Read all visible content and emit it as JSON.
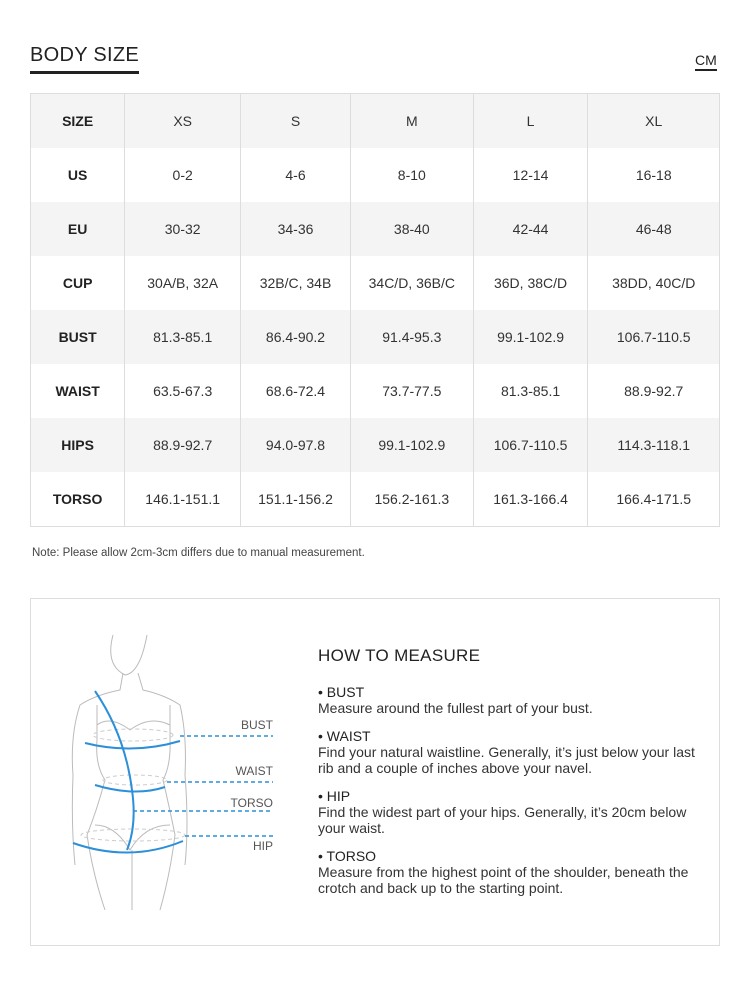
{
  "header": {
    "title": "BODY SIZE",
    "unit": "CM"
  },
  "table": {
    "columns": [
      "SIZE",
      "XS",
      "S",
      "M",
      "L",
      "XL"
    ],
    "rows": [
      {
        "label": "US",
        "values": [
          "0-2",
          "4-6",
          "8-10",
          "12-14",
          "16-18"
        ]
      },
      {
        "label": "EU",
        "values": [
          "30-32",
          "34-36",
          "38-40",
          "42-44",
          "46-48"
        ]
      },
      {
        "label": "CUP",
        "values": [
          "30A/B, 32A",
          "32B/C, 34B",
          "34C/D, 36B/C",
          "36D, 38C/D",
          "38DD, 40C/D"
        ]
      },
      {
        "label": "BUST",
        "values": [
          "81.3-85.1",
          "86.4-90.2",
          "91.4-95.3",
          "99.1-102.9",
          "106.7-110.5"
        ]
      },
      {
        "label": "WAIST",
        "values": [
          "63.5-67.3",
          "68.6-72.4",
          "73.7-77.5",
          "81.3-85.1",
          "88.9-92.7"
        ]
      },
      {
        "label": "HIPS",
        "values": [
          "88.9-92.7",
          "94.0-97.8",
          "99.1-102.9",
          "106.7-110.5",
          "114.3-118.1"
        ]
      },
      {
        "label": "TORSO",
        "values": [
          "146.1-151.1",
          "151.1-156.2",
          "156.2-161.3",
          "161.3-166.4",
          "166.4-171.5"
        ]
      }
    ]
  },
  "note": "Note: Please allow 2cm-3cm differs due to manual measurement.",
  "figure": {
    "labels": [
      "BUST",
      "WAIST",
      "TORSO",
      "HIP"
    ],
    "accent": "#2b8fd9"
  },
  "how": {
    "title": "HOW TO MEASURE",
    "items": [
      {
        "name": "• BUST",
        "text": "Measure around the fullest part of your bust."
      },
      {
        "name": "• WAIST",
        "text": "Find your natural waistline. Generally, it’s just below your last rib and a couple of inches above your navel."
      },
      {
        "name": "• HIP",
        "text": "Find the widest part of your hips. Generally, it’s 20cm below your waist."
      },
      {
        "name": "• TORSO",
        "text": "Measure from the highest point of the shoulder, beneath the crotch and back up to the starting point."
      }
    ]
  }
}
